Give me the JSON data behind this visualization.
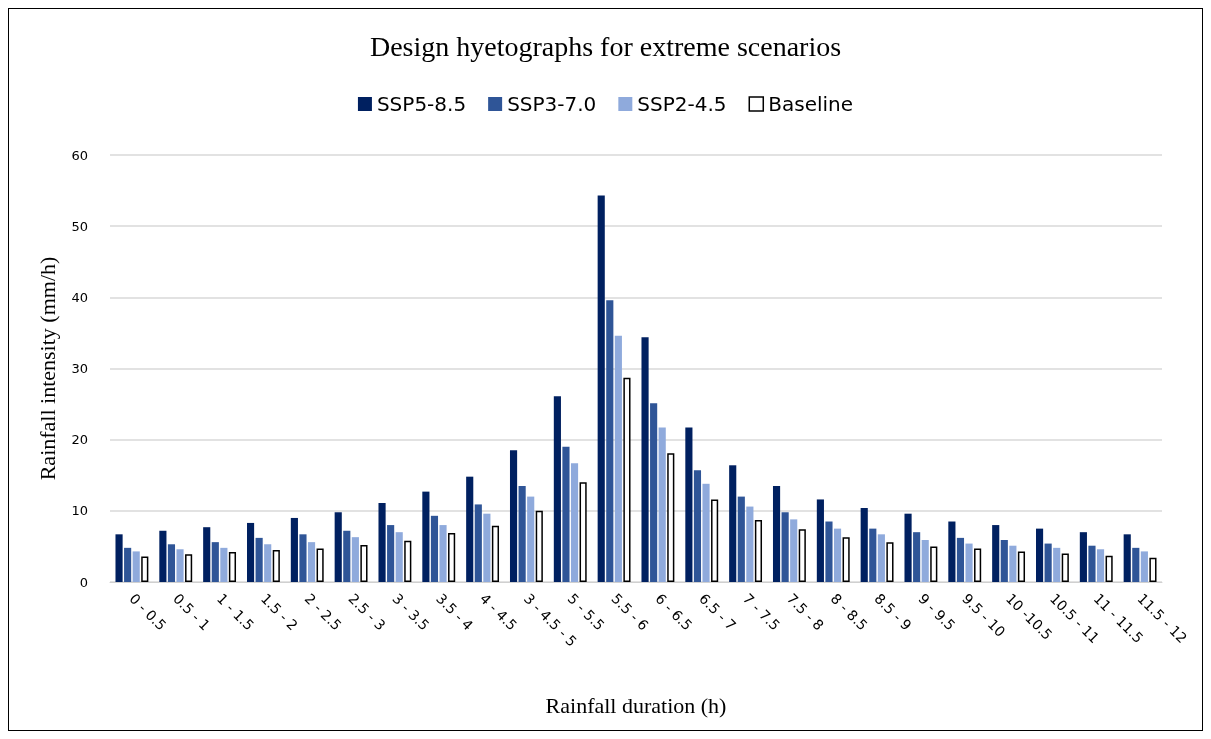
{
  "chart_data": {
    "type": "bar",
    "title": "Design hyetographs for extreme scenarios",
    "xlabel": "Rainfall duration (h)",
    "ylabel": "Rainfall intensity (mm/h)",
    "categories": [
      "0 - 0.5",
      "0.5 - 1",
      "1 - 1.5",
      "1.5 - 2",
      "2 - 2.5",
      "2.5 - 3",
      "3 - 3.5",
      "3.5 - 4",
      "4 - 4.5",
      "3 - 4.5 - 5",
      "5 - 5.5",
      "5.5 - 6",
      "6 - 6.5",
      "6.5 - 7",
      "7 - 7.5",
      "7.5 - 8",
      "8 - 8.5",
      "8.5 - 9",
      "9 - 9.5",
      "9.5 - 10",
      "10 -10.5",
      "10.5 - 11",
      "11 - 11.5",
      "11.5 - 12"
    ],
    "series": [
      {
        "name": "SSP5-8.5",
        "color": "#002060",
        "values": [
          6.7,
          7.2,
          7.7,
          8.3,
          9.0,
          9.8,
          11.1,
          12.7,
          14.8,
          18.5,
          26.1,
          54.3,
          34.4,
          21.7,
          16.4,
          13.5,
          11.6,
          10.4,
          9.6,
          8.5,
          8.0,
          7.5,
          7.0,
          6.7
        ]
      },
      {
        "name": "SSP3-7.0",
        "color": "#2f5597",
        "values": [
          4.8,
          5.3,
          5.6,
          6.2,
          6.7,
          7.2,
          8.0,
          9.3,
          10.9,
          13.5,
          19.0,
          39.6,
          25.1,
          15.7,
          12.0,
          9.8,
          8.5,
          7.5,
          7.0,
          6.2,
          5.9,
          5.4,
          5.1,
          4.8
        ]
      },
      {
        "name": "SSP2-4.5",
        "color": "#8faadc",
        "values": [
          4.3,
          4.6,
          4.8,
          5.3,
          5.6,
          6.3,
          7.0,
          8.0,
          9.6,
          12.0,
          16.7,
          34.6,
          21.7,
          13.8,
          10.6,
          8.8,
          7.5,
          6.7,
          5.9,
          5.4,
          5.1,
          4.8,
          4.6,
          4.3
        ]
      },
      {
        "name": "Baseline",
        "color": "#ffffff",
        "values": [
          3.6,
          3.9,
          4.2,
          4.5,
          4.7,
          5.2,
          5.8,
          6.9,
          7.9,
          10.0,
          14.0,
          28.7,
          18.1,
          11.6,
          8.7,
          7.4,
          6.3,
          5.6,
          5.0,
          4.7,
          4.3,
          4.0,
          3.7,
          3.4
        ]
      }
    ],
    "ylim": [
      0,
      60
    ],
    "yticks": [
      0,
      10,
      20,
      30,
      40,
      50,
      60
    ],
    "grid": "y",
    "legend": "top"
  }
}
